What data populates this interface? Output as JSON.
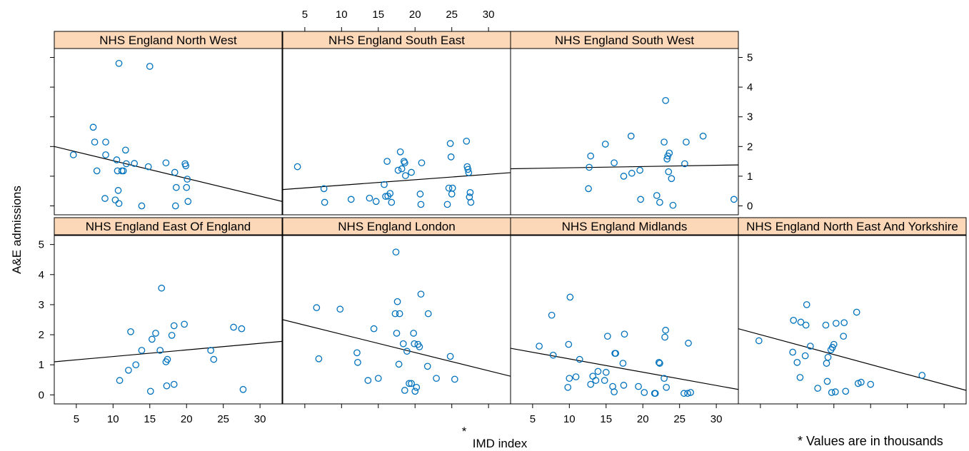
{
  "chart_data": {
    "type": "scatter",
    "xlabel": "IMD index",
    "ylabel": "A&E admissions",
    "xlim": [
      2,
      33
    ],
    "ylim": [
      -0.3,
      5.3
    ],
    "x_ticks": [
      5,
      10,
      15,
      20,
      25,
      30
    ],
    "y_ticks": [
      0,
      1,
      2,
      3,
      4,
      5
    ],
    "grid": false,
    "marker_color": "#0072bd",
    "strip_color": "#fcd8b8",
    "panels": [
      {
        "title": "NHS England North West",
        "line": [
          [
            2,
            2.0
          ],
          [
            33,
            0.15
          ]
        ],
        "points": [
          [
            4.6,
            1.72
          ],
          [
            7.3,
            2.65
          ],
          [
            7.5,
            2.15
          ],
          [
            7.8,
            1.18
          ],
          [
            8.9,
            0.25
          ],
          [
            9.0,
            2.15
          ],
          [
            9.0,
            1.72
          ],
          [
            10.3,
            0.2
          ],
          [
            10.5,
            1.55
          ],
          [
            10.6,
            1.18
          ],
          [
            10.7,
            0.52
          ],
          [
            10.8,
            0.08
          ],
          [
            10.8,
            4.8
          ],
          [
            11.2,
            1.18
          ],
          [
            11.4,
            1.18
          ],
          [
            11.7,
            1.88
          ],
          [
            11.8,
            1.42
          ],
          [
            12.9,
            1.43
          ],
          [
            13.9,
            0.0
          ],
          [
            14.8,
            1.32
          ],
          [
            15.0,
            4.7
          ],
          [
            17.2,
            1.45
          ],
          [
            18.4,
            1.13
          ],
          [
            18.5,
            0.0
          ],
          [
            18.6,
            0.62
          ],
          [
            19.8,
            1.42
          ],
          [
            19.9,
            1.35
          ],
          [
            20.0,
            0.62
          ],
          [
            20.1,
            0.9
          ],
          [
            20.2,
            0.15
          ]
        ]
      },
      {
        "title": "NHS England South East",
        "line": [
          [
            2,
            0.55
          ],
          [
            33,
            1.12
          ]
        ],
        "points": [
          [
            4.0,
            1.32
          ],
          [
            7.6,
            0.58
          ],
          [
            7.7,
            0.12
          ],
          [
            11.3,
            0.22
          ],
          [
            13.8,
            0.26
          ],
          [
            14.7,
            0.15
          ],
          [
            15.8,
            0.72
          ],
          [
            16.0,
            0.32
          ],
          [
            16.2,
            1.5
          ],
          [
            16.3,
            0.33
          ],
          [
            16.6,
            0.42
          ],
          [
            16.8,
            0.12
          ],
          [
            17.7,
            1.2
          ],
          [
            18.0,
            1.82
          ],
          [
            18.2,
            1.25
          ],
          [
            18.5,
            1.5
          ],
          [
            18.6,
            1.45
          ],
          [
            18.7,
            1.02
          ],
          [
            19.5,
            1.13
          ],
          [
            20.7,
            0.4
          ],
          [
            20.8,
            0.05
          ],
          [
            20.9,
            1.45
          ],
          [
            24.4,
            0.05
          ],
          [
            24.6,
            0.6
          ],
          [
            24.8,
            2.1
          ],
          [
            24.9,
            1.65
          ],
          [
            25.0,
            0.4
          ],
          [
            25.1,
            0.6
          ],
          [
            27.0,
            2.18
          ],
          [
            27.1,
            1.32
          ],
          [
            27.2,
            1.23
          ],
          [
            27.3,
            1.12
          ],
          [
            27.4,
            0.3
          ],
          [
            27.5,
            0.45
          ],
          [
            27.6,
            0.12
          ]
        ]
      },
      {
        "title": "NHS England South West",
        "line": [
          [
            2,
            1.25
          ],
          [
            33,
            1.38
          ]
        ],
        "points": [
          [
            12.6,
            0.58
          ],
          [
            12.7,
            1.3
          ],
          [
            12.9,
            1.68
          ],
          [
            14.9,
            2.08
          ],
          [
            16.1,
            1.45
          ],
          [
            17.4,
            1.0
          ],
          [
            18.4,
            2.35
          ],
          [
            18.5,
            1.1
          ],
          [
            19.6,
            1.2
          ],
          [
            19.7,
            0.22
          ],
          [
            21.9,
            0.35
          ],
          [
            22.3,
            0.12
          ],
          [
            22.9,
            2.15
          ],
          [
            23.1,
            3.55
          ],
          [
            23.3,
            1.58
          ],
          [
            23.4,
            1.68
          ],
          [
            23.5,
            1.15
          ],
          [
            23.6,
            1.78
          ],
          [
            23.9,
            0.92
          ],
          [
            24.1,
            0.02
          ],
          [
            25.7,
            1.42
          ],
          [
            25.9,
            2.15
          ],
          [
            28.2,
            2.35
          ],
          [
            32.4,
            0.22
          ]
        ]
      },
      {
        "title": "NHS England East Of England",
        "line": [
          [
            2,
            1.1
          ],
          [
            33,
            1.78
          ]
        ],
        "points": [
          [
            10.9,
            0.48
          ],
          [
            12.1,
            0.82
          ],
          [
            12.4,
            2.1
          ],
          [
            13.1,
            1.0
          ],
          [
            13.9,
            1.48
          ],
          [
            15.1,
            0.12
          ],
          [
            15.3,
            1.85
          ],
          [
            15.8,
            2.05
          ],
          [
            16.4,
            1.48
          ],
          [
            16.6,
            3.55
          ],
          [
            17.2,
            1.1
          ],
          [
            17.3,
            0.3
          ],
          [
            17.4,
            1.18
          ],
          [
            18.0,
            1.98
          ],
          [
            18.3,
            0.35
          ],
          [
            18.3,
            2.3
          ],
          [
            19.7,
            2.35
          ],
          [
            23.3,
            1.48
          ],
          [
            23.7,
            1.18
          ],
          [
            26.4,
            2.25
          ],
          [
            27.5,
            2.2
          ],
          [
            27.7,
            0.18
          ]
        ]
      },
      {
        "title": "NHS England London",
        "line": [
          [
            2,
            2.5
          ],
          [
            33,
            0.62
          ]
        ],
        "points": [
          [
            6.6,
            2.9
          ],
          [
            6.9,
            1.2
          ],
          [
            9.8,
            2.85
          ],
          [
            12.1,
            1.4
          ],
          [
            12.2,
            1.08
          ],
          [
            13.6,
            0.48
          ],
          [
            14.4,
            2.2
          ],
          [
            15.0,
            0.55
          ],
          [
            17.3,
            2.7
          ],
          [
            17.4,
            4.75
          ],
          [
            17.5,
            2.05
          ],
          [
            17.6,
            3.1
          ],
          [
            17.8,
            1.02
          ],
          [
            17.9,
            2.7
          ],
          [
            18.4,
            1.7
          ],
          [
            18.6,
            0.15
          ],
          [
            18.9,
            1.45
          ],
          [
            19.2,
            0.38
          ],
          [
            19.5,
            0.38
          ],
          [
            19.8,
            2.05
          ],
          [
            19.9,
            1.7
          ],
          [
            20.0,
            0.12
          ],
          [
            20.2,
            0.25
          ],
          [
            20.4,
            1.68
          ],
          [
            20.6,
            1.6
          ],
          [
            20.8,
            3.35
          ],
          [
            21.7,
            0.95
          ],
          [
            21.8,
            2.7
          ],
          [
            22.9,
            0.55
          ],
          [
            24.8,
            1.28
          ],
          [
            25.4,
            0.52
          ]
        ]
      },
      {
        "title": "NHS England Midlands",
        "line": [
          [
            2,
            1.55
          ],
          [
            33,
            0.18
          ]
        ],
        "points": [
          [
            5.9,
            1.62
          ],
          [
            7.6,
            2.65
          ],
          [
            7.8,
            1.32
          ],
          [
            9.8,
            0.25
          ],
          [
            9.9,
            1.68
          ],
          [
            10.0,
            0.55
          ],
          [
            10.1,
            3.25
          ],
          [
            10.9,
            0.6
          ],
          [
            11.4,
            1.18
          ],
          [
            12.9,
            0.35
          ],
          [
            13.2,
            0.62
          ],
          [
            13.6,
            0.48
          ],
          [
            13.9,
            0.78
          ],
          [
            14.8,
            0.48
          ],
          [
            15.0,
            0.75
          ],
          [
            15.2,
            1.95
          ],
          [
            15.9,
            0.28
          ],
          [
            16.1,
            0.1
          ],
          [
            16.2,
            1.38
          ],
          [
            16.3,
            1.38
          ],
          [
            17.3,
            1.05
          ],
          [
            17.4,
            0.32
          ],
          [
            17.5,
            2.02
          ],
          [
            19.4,
            0.28
          ],
          [
            20.2,
            0.08
          ],
          [
            21.6,
            0.05
          ],
          [
            21.7,
            0.05
          ],
          [
            22.2,
            1.08
          ],
          [
            22.3,
            1.05
          ],
          [
            22.9,
            0.55
          ],
          [
            23.0,
            1.92
          ],
          [
            23.1,
            2.15
          ],
          [
            23.2,
            0.25
          ],
          [
            25.6,
            0.05
          ],
          [
            26.1,
            0.05
          ],
          [
            26.2,
            1.72
          ],
          [
            26.5,
            0.08
          ]
        ]
      },
      {
        "title": "NHS England North East And Yorkshire",
        "line": [
          [
            2,
            2.2
          ],
          [
            33,
            0.15
          ]
        ],
        "points": [
          [
            4.8,
            1.8
          ],
          [
            9.4,
            1.42
          ],
          [
            9.5,
            2.48
          ],
          [
            10.0,
            1.08
          ],
          [
            10.4,
            0.58
          ],
          [
            10.5,
            2.42
          ],
          [
            11.1,
            1.3
          ],
          [
            11.2,
            2.32
          ],
          [
            11.3,
            3.0
          ],
          [
            11.8,
            1.62
          ],
          [
            12.8,
            0.22
          ],
          [
            13.9,
            2.32
          ],
          [
            14.0,
            1.05
          ],
          [
            14.1,
            0.45
          ],
          [
            14.2,
            1.25
          ],
          [
            14.6,
            1.5
          ],
          [
            14.7,
            0.08
          ],
          [
            14.8,
            1.58
          ],
          [
            15.0,
            1.68
          ],
          [
            15.2,
            0.1
          ],
          [
            15.3,
            2.38
          ],
          [
            16.3,
            1.95
          ],
          [
            16.4,
            2.4
          ],
          [
            16.6,
            0.12
          ],
          [
            18.1,
            2.75
          ],
          [
            18.3,
            0.38
          ],
          [
            18.7,
            0.42
          ],
          [
            20.0,
            0.35
          ],
          [
            27.0,
            0.65
          ]
        ]
      }
    ],
    "annotations": [
      "*",
      "* Values are in thousands"
    ]
  }
}
